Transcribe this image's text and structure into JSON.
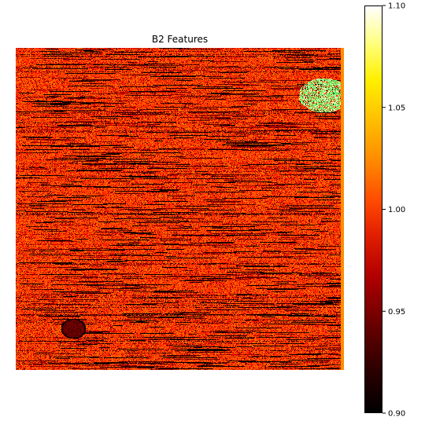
{
  "chart_data": {
    "type": "heatmap",
    "title": "B2 Features",
    "xlabel": "",
    "ylabel": "",
    "colormap": "hot",
    "colorbar": {
      "range": [
        0.9,
        1.1
      ],
      "ticks": [
        {
          "value": 1.1,
          "label": "1.10"
        },
        {
          "value": 1.05,
          "label": "1.05"
        },
        {
          "value": 1.0,
          "label": "1.00"
        },
        {
          "value": 0.95,
          "label": "0.95"
        },
        {
          "value": 0.9,
          "label": "0.90"
        }
      ]
    },
    "image": {
      "typical_value": 0.995,
      "background_color": "#ff4500",
      "dark_streak_color": "#5a0000",
      "edge_strip_color": "#ff8c00",
      "anomaly_color": "#66e066",
      "features": [
        {
          "kind": "dark-spot",
          "near": "bottom-left",
          "value": 0.9
        },
        {
          "kind": "bright-patch",
          "near": "top-right",
          "value": 1.1
        },
        {
          "kind": "edge-strip",
          "near": "right",
          "value": 1.03
        }
      ]
    },
    "grid": false,
    "axes_visible": false
  }
}
